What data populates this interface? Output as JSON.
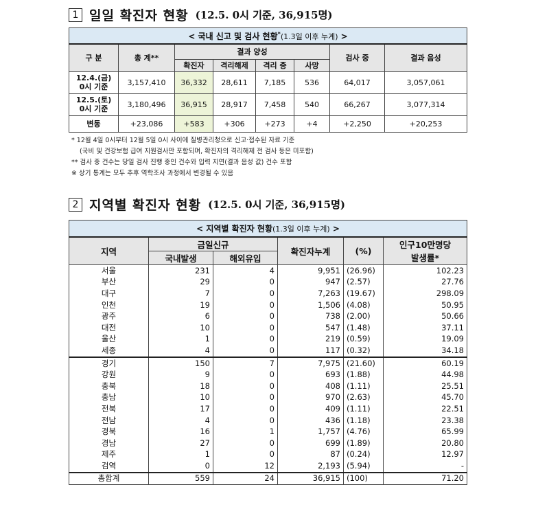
{
  "section1": {
    "num": "1",
    "title": "일일 확진자 현황",
    "subtitle": "(12.5. 0시 기준, 36,915명)",
    "caption": "< 국내 신고 및 검사 현황",
    "caption_star": "*",
    "caption_small": "(1.3일 이후 누계)",
    "caption_end": " >",
    "headers": {
      "category": "구 분",
      "total": "총 계**",
      "positive": "결과 양성",
      "confirmed": "확진자",
      "released": "격리해제",
      "isolated": "격리 중",
      "deaths": "사망",
      "testing": "검사 중",
      "negative": "결과 음성"
    },
    "rows": [
      {
        "label1": "12.4.(금)",
        "label2": "0시 기준",
        "total": "3,157,410",
        "confirmed": "36,332",
        "released": "28,611",
        "isolated": "7,185",
        "deaths": "536",
        "testing": "64,017",
        "negative": "3,057,061"
      },
      {
        "label1": "12.5.(토)",
        "label2": "0시 기준",
        "total": "3,180,496",
        "confirmed": "36,915",
        "released": "28,917",
        "isolated": "7,458",
        "deaths": "540",
        "testing": "66,267",
        "negative": "3,077,314"
      }
    ],
    "change": {
      "label": "변동",
      "total": "+23,086",
      "confirmed": "+583",
      "released": "+306",
      "isolated": "+273",
      "deaths": "+4",
      "testing": "+2,250",
      "negative": "+20,253"
    }
  },
  "notes": [
    "* 12월 4일 0시부터 12월 5일 0시 사이에 질병관리청으로 신고·접수된 자료 기준",
    "(국비 및 건강보험 급여 지원검사만 포함되며, 확진자의 격리해제 전 검사 등은 미포함)",
    "** 검사 중 건수는 당일 검사 진행 중인 건수와 입력 지연(결과 음성 값) 건수 포함",
    "※ 상기 통계는 모두 추후 역학조사 과정에서 변경될 수 있음"
  ],
  "section2": {
    "num": "2",
    "title": "지역별 확진자 현황",
    "subtitle": "(12.5. 0시 기준, 36,915명)",
    "caption": "< 지역별 확진자 현황",
    "caption_small": "(1.3일 이후 누계)",
    "caption_end": " >",
    "headers": {
      "region": "지역",
      "new_today": "금일신규",
      "domestic": "국내발생",
      "overseas": "해외유입",
      "cumulative": "확진자누계",
      "percent": "(%)",
      "rate1": "인구10만명당",
      "rate2": "발생률*"
    },
    "rows": [
      {
        "region": "서울",
        "domestic": "231",
        "overseas": "4",
        "cumulative": "9,951",
        "percent": "(26.96)",
        "rate": "102.23"
      },
      {
        "region": "부산",
        "domestic": "29",
        "overseas": "0",
        "cumulative": "947",
        "percent": "(2.57)",
        "rate": "27.76"
      },
      {
        "region": "대구",
        "domestic": "7",
        "overseas": "0",
        "cumulative": "7,263",
        "percent": "(19.67)",
        "rate": "298.09"
      },
      {
        "region": "인천",
        "domestic": "19",
        "overseas": "0",
        "cumulative": "1,506",
        "percent": "(4.08)",
        "rate": "50.95"
      },
      {
        "region": "광주",
        "domestic": "6",
        "overseas": "0",
        "cumulative": "738",
        "percent": "(2.00)",
        "rate": "50.66"
      },
      {
        "region": "대전",
        "domestic": "10",
        "overseas": "0",
        "cumulative": "547",
        "percent": "(1.48)",
        "rate": "37.11"
      },
      {
        "region": "울산",
        "domestic": "1",
        "overseas": "0",
        "cumulative": "219",
        "percent": "(0.59)",
        "rate": "19.09"
      },
      {
        "region": "세종",
        "domestic": "4",
        "overseas": "0",
        "cumulative": "117",
        "percent": "(0.32)",
        "rate": "34.18"
      },
      {
        "region": "경기",
        "domestic": "150",
        "overseas": "7",
        "cumulative": "7,975",
        "percent": "(21.60)",
        "rate": "60.19"
      },
      {
        "region": "강원",
        "domestic": "9",
        "overseas": "0",
        "cumulative": "693",
        "percent": "(1.88)",
        "rate": "44.98"
      },
      {
        "region": "충북",
        "domestic": "18",
        "overseas": "0",
        "cumulative": "408",
        "percent": "(1.11)",
        "rate": "25.51"
      },
      {
        "region": "충남",
        "domestic": "10",
        "overseas": "0",
        "cumulative": "970",
        "percent": "(2.63)",
        "rate": "45.70"
      },
      {
        "region": "전북",
        "domestic": "17",
        "overseas": "0",
        "cumulative": "409",
        "percent": "(1.11)",
        "rate": "22.51"
      },
      {
        "region": "전남",
        "domestic": "4",
        "overseas": "0",
        "cumulative": "436",
        "percent": "(1.18)",
        "rate": "23.38"
      },
      {
        "region": "경북",
        "domestic": "16",
        "overseas": "1",
        "cumulative": "1,757",
        "percent": "(4.76)",
        "rate": "65.99"
      },
      {
        "region": "경남",
        "domestic": "27",
        "overseas": "0",
        "cumulative": "699",
        "percent": "(1.89)",
        "rate": "20.80"
      },
      {
        "region": "제주",
        "domestic": "1",
        "overseas": "0",
        "cumulative": "87",
        "percent": "(0.24)",
        "rate": "12.97"
      },
      {
        "region": "검역",
        "domestic": "0",
        "overseas": "12",
        "cumulative": "2,193",
        "percent": "(5.94)",
        "rate": "-"
      }
    ],
    "total": {
      "region": "총합계",
      "domestic": "559",
      "overseas": "24",
      "cumulative": "36,915",
      "percent": "(100)",
      "rate": "71.20"
    }
  }
}
